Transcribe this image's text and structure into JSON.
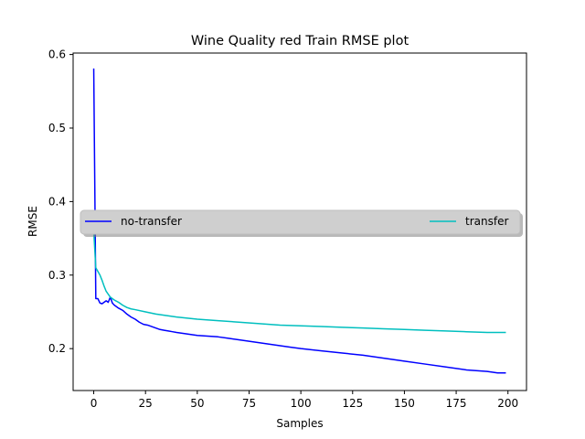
{
  "chart_data": {
    "type": "line",
    "title": "Wine Quality red Train RMSE plot",
    "xlabel": "Samples",
    "ylabel": "RMSE",
    "xlim": [
      -9.95,
      208.95
    ],
    "ylim": [
      0.143,
      0.602
    ],
    "xticks": [
      0,
      25,
      50,
      75,
      100,
      125,
      150,
      175,
      200
    ],
    "xtick_labels": [
      "0",
      "25",
      "50",
      "75",
      "100",
      "125",
      "150",
      "175",
      "200"
    ],
    "yticks": [
      0.2,
      0.3,
      0.4,
      0.5,
      0.6
    ],
    "ytick_labels": [
      "0.2",
      "0.3",
      "0.4",
      "0.5",
      "0.6"
    ],
    "legend_position": "center, spanning width",
    "grid": false,
    "series": [
      {
        "name": "no-transfer",
        "color": "#0000ff",
        "x": [
          0,
          1,
          2,
          3,
          4,
          5,
          6,
          7,
          8,
          9,
          10,
          12,
          14,
          16,
          18,
          20,
          22,
          24,
          26,
          28,
          30,
          32,
          34,
          36,
          38,
          40,
          45,
          50,
          55,
          60,
          65,
          70,
          75,
          80,
          85,
          90,
          95,
          100,
          110,
          120,
          130,
          140,
          150,
          160,
          170,
          180,
          190,
          195,
          199
        ],
        "y": [
          0.581,
          0.268,
          0.268,
          0.262,
          0.261,
          0.263,
          0.265,
          0.263,
          0.27,
          0.262,
          0.259,
          0.255,
          0.252,
          0.247,
          0.243,
          0.24,
          0.236,
          0.233,
          0.232,
          0.23,
          0.228,
          0.226,
          0.225,
          0.224,
          0.223,
          0.222,
          0.22,
          0.218,
          0.217,
          0.216,
          0.214,
          0.212,
          0.21,
          0.208,
          0.206,
          0.204,
          0.202,
          0.2,
          0.197,
          0.194,
          0.191,
          0.187,
          0.183,
          0.179,
          0.175,
          0.171,
          0.169,
          0.167,
          0.167
        ]
      },
      {
        "name": "transfer",
        "color": "#00bfbf",
        "x": [
          0,
          1,
          2,
          3,
          4,
          5,
          6,
          7,
          8,
          10,
          12,
          14,
          16,
          18,
          20,
          25,
          30,
          35,
          40,
          50,
          60,
          70,
          80,
          90,
          100,
          110,
          120,
          130,
          140,
          150,
          160,
          170,
          180,
          190,
          199
        ],
        "y": [
          0.36,
          0.31,
          0.305,
          0.3,
          0.293,
          0.285,
          0.278,
          0.274,
          0.27,
          0.266,
          0.263,
          0.259,
          0.256,
          0.254,
          0.253,
          0.25,
          0.247,
          0.245,
          0.243,
          0.24,
          0.238,
          0.236,
          0.234,
          0.232,
          0.231,
          0.23,
          0.229,
          0.228,
          0.227,
          0.226,
          0.225,
          0.224,
          0.223,
          0.222,
          0.222
        ]
      }
    ]
  }
}
